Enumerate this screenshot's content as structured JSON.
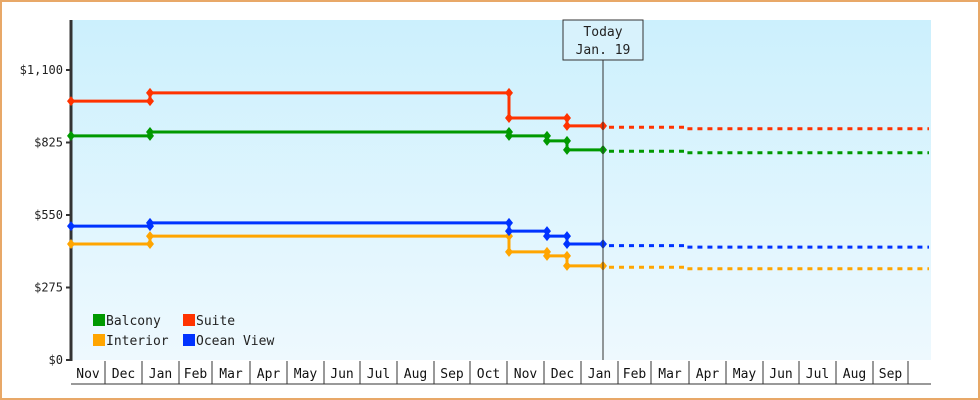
{
  "chart_data": {
    "type": "line",
    "title": "",
    "xlabel": "",
    "ylabel": "",
    "ylim": [
      0,
      1100
    ],
    "y_ticks": [
      "$0",
      "$275",
      "$550",
      "$825",
      "$1,100"
    ],
    "y_tick_values": [
      0,
      275,
      550,
      825,
      1100
    ],
    "x_ticks": [
      "Nov",
      "Dec",
      "Jan",
      "Feb",
      "Mar",
      "Apr",
      "May",
      "Jun",
      "Jul",
      "Aug",
      "Sep",
      "Oct",
      "Nov",
      "Dec",
      "Jan",
      "Feb",
      "Mar",
      "Apr",
      "May",
      "Jun",
      "Jul",
      "Aug",
      "Sep"
    ],
    "today_marker": {
      "line1": "Today",
      "line2": "Jan. 19"
    },
    "grid": false,
    "legend_position": "bottom-left inside",
    "legend": [
      {
        "name": "Balcony",
        "color": "#009900"
      },
      {
        "name": "Suite",
        "color": "#ff3300"
      },
      {
        "name": "Interior",
        "color": "#ffa500"
      },
      {
        "name": "Ocean View",
        "color": "#0033ff"
      }
    ],
    "series": [
      {
        "name": "Suite",
        "color": "#ff3300",
        "points": [
          {
            "date": "Nov (start)",
            "value": 982
          },
          {
            "date": "Jan (prev yr)",
            "value": 982
          },
          {
            "date": "Jan (prev yr)",
            "value": 1013
          },
          {
            "date": "Oct end",
            "value": 1013
          },
          {
            "date": "Oct end",
            "value": 918
          },
          {
            "date": "Dec mid",
            "value": 918
          },
          {
            "date": "Dec mid",
            "value": 888
          },
          {
            "date": "Jan 19",
            "value": 888
          }
        ],
        "forecast": [
          {
            "date": "Jan 19",
            "value": 883
          },
          {
            "date": "Mar end",
            "value": 883
          },
          {
            "date": "Mar end",
            "value": 877
          },
          {
            "date": "Sep end",
            "value": 877
          }
        ]
      },
      {
        "name": "Balcony",
        "color": "#009900",
        "points": [
          {
            "date": "Nov (start)",
            "value": 850
          },
          {
            "date": "Jan (prev yr)",
            "value": 850
          },
          {
            "date": "Jan (prev yr)",
            "value": 865
          },
          {
            "date": "Oct end",
            "value": 865
          },
          {
            "date": "Oct end",
            "value": 850
          },
          {
            "date": "Nov end",
            "value": 850
          },
          {
            "date": "Nov end",
            "value": 831
          },
          {
            "date": "Dec mid",
            "value": 831
          },
          {
            "date": "Dec mid",
            "value": 797
          },
          {
            "date": "Jan 19",
            "value": 797
          }
        ],
        "forecast": [
          {
            "date": "Jan 19",
            "value": 792
          },
          {
            "date": "Mar end",
            "value": 792
          },
          {
            "date": "Mar end",
            "value": 786
          },
          {
            "date": "Sep end",
            "value": 786
          }
        ]
      },
      {
        "name": "Ocean View",
        "color": "#0033ff",
        "points": [
          {
            "date": "Nov (start)",
            "value": 508
          },
          {
            "date": "Jan (prev yr)",
            "value": 508
          },
          {
            "date": "Jan (prev yr)",
            "value": 520
          },
          {
            "date": "Oct end",
            "value": 520
          },
          {
            "date": "Oct end",
            "value": 489
          },
          {
            "date": "Nov end",
            "value": 489
          },
          {
            "date": "Nov end",
            "value": 470
          },
          {
            "date": "Dec mid",
            "value": 470
          },
          {
            "date": "Dec mid",
            "value": 440
          },
          {
            "date": "Jan 19",
            "value": 440
          }
        ],
        "forecast": [
          {
            "date": "Jan 19",
            "value": 434
          },
          {
            "date": "Mar end",
            "value": 434
          },
          {
            "date": "Mar end",
            "value": 428
          },
          {
            "date": "Sep end",
            "value": 428
          }
        ]
      },
      {
        "name": "Interior",
        "color": "#ffa500",
        "points": [
          {
            "date": "Nov (start)",
            "value": 440
          },
          {
            "date": "Jan (prev yr)",
            "value": 440
          },
          {
            "date": "Jan (prev yr)",
            "value": 470
          },
          {
            "date": "Oct end",
            "value": 470
          },
          {
            "date": "Oct end",
            "value": 410
          },
          {
            "date": "Nov end",
            "value": 410
          },
          {
            "date": "Nov end",
            "value": 395
          },
          {
            "date": "Dec mid",
            "value": 395
          },
          {
            "date": "Dec mid",
            "value": 357
          },
          {
            "date": "Jan 19",
            "value": 357
          }
        ],
        "forecast": [
          {
            "date": "Jan 19",
            "value": 352
          },
          {
            "date": "Mar end",
            "value": 352
          },
          {
            "date": "Mar end",
            "value": 346
          },
          {
            "date": "Sep end",
            "value": 346
          }
        ]
      }
    ]
  },
  "colors": {
    "frame_border": "#e8a868",
    "plot_bg_top": "#ccf0fd",
    "plot_bg_bottom": "#eef9fe",
    "axis": "#333333"
  }
}
